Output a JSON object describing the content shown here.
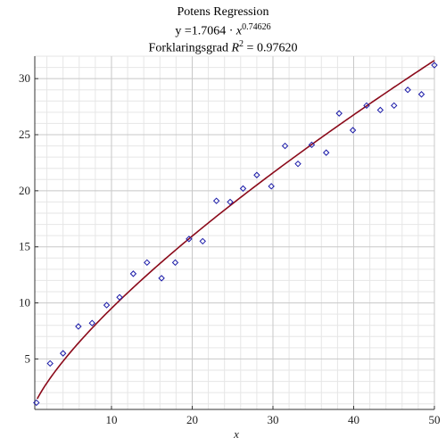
{
  "chart_data": {
    "type": "scatter",
    "title": "Potens Regression",
    "equation": {
      "lhs": "y =",
      "coef": "1.7064",
      "dot": " · ",
      "var": "x",
      "exponent": "0.74626"
    },
    "r2": {
      "prefix": "Forklaringsgrad ",
      "var": "R",
      "sup": "2",
      "suffix": " = 0.97620"
    },
    "xlabel": "x",
    "ylabel": "",
    "xlim": [
      0.5,
      50
    ],
    "ylim": [
      0.5,
      32
    ],
    "xticks": [
      10,
      20,
      30,
      40,
      50
    ],
    "yticks": [
      5,
      10,
      15,
      20,
      25,
      30
    ],
    "grid": true,
    "fit": {
      "a": 1.7064,
      "b": 0.74626,
      "x_start": 0.8,
      "x_end": 50
    },
    "points": [
      {
        "x": 0.7,
        "y": 1.1
      },
      {
        "x": 2.4,
        "y": 4.6
      },
      {
        "x": 4.0,
        "y": 5.5
      },
      {
        "x": 5.9,
        "y": 7.9
      },
      {
        "x": 7.6,
        "y": 8.2
      },
      {
        "x": 9.4,
        "y": 9.8
      },
      {
        "x": 11.0,
        "y": 10.5
      },
      {
        "x": 12.7,
        "y": 12.6
      },
      {
        "x": 14.4,
        "y": 13.6
      },
      {
        "x": 16.2,
        "y": 12.2
      },
      {
        "x": 17.9,
        "y": 13.6
      },
      {
        "x": 19.6,
        "y": 15.7
      },
      {
        "x": 21.3,
        "y": 15.5
      },
      {
        "x": 23.0,
        "y": 19.1
      },
      {
        "x": 24.7,
        "y": 19.0
      },
      {
        "x": 26.3,
        "y": 20.2
      },
      {
        "x": 28.0,
        "y": 21.4
      },
      {
        "x": 29.8,
        "y": 20.4
      },
      {
        "x": 31.5,
        "y": 24.0
      },
      {
        "x": 33.1,
        "y": 22.4
      },
      {
        "x": 34.8,
        "y": 24.1
      },
      {
        "x": 36.6,
        "y": 23.4
      },
      {
        "x": 38.2,
        "y": 26.9
      },
      {
        "x": 39.9,
        "y": 25.4
      },
      {
        "x": 41.6,
        "y": 27.6
      },
      {
        "x": 43.3,
        "y": 27.2
      },
      {
        "x": 45.0,
        "y": 27.6
      },
      {
        "x": 46.7,
        "y": 29.0
      },
      {
        "x": 48.4,
        "y": 28.6
      },
      {
        "x": 50.0,
        "y": 31.2
      }
    ],
    "colors": {
      "points": "#1a1aa8",
      "fit_line": "#8b0a1a",
      "grid": "#c8c8c8",
      "axis": "#333333"
    }
  }
}
